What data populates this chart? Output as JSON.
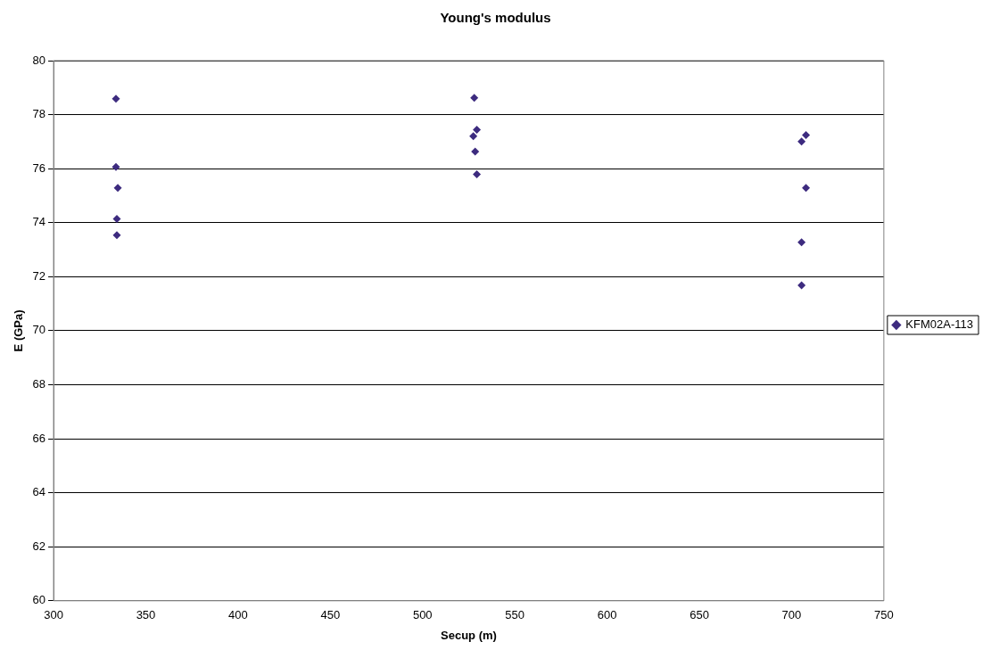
{
  "chart_data": {
    "type": "scatter",
    "title": "Young's modulus",
    "xlabel": "Secup (m)",
    "ylabel": "E (GPa)",
    "xlim": [
      300,
      750
    ],
    "xticks": [
      300,
      350,
      400,
      450,
      500,
      550,
      600,
      650,
      700,
      750
    ],
    "ylim": [
      60,
      80
    ],
    "yticks": [
      60,
      62,
      64,
      66,
      68,
      70,
      72,
      74,
      76,
      78,
      80
    ],
    "grid": "y",
    "legend": "right",
    "marker": "diamond",
    "series": [
      {
        "name": "KFM02A-113",
        "color": "#3d2b7f",
        "x": [
          333.8,
          333.8,
          334.8,
          334.3,
          334.3,
          528,
          529.4,
          527.5,
          528.5,
          529.4,
          705.4,
          707.8,
          707.8,
          705.4,
          705.4
        ],
        "values": [
          78.59,
          76.06,
          75.29,
          74.14,
          73.54,
          78.62,
          77.44,
          77.2,
          76.63,
          75.79,
          77.0,
          77.24,
          75.29,
          73.27,
          71.68
        ]
      }
    ]
  }
}
